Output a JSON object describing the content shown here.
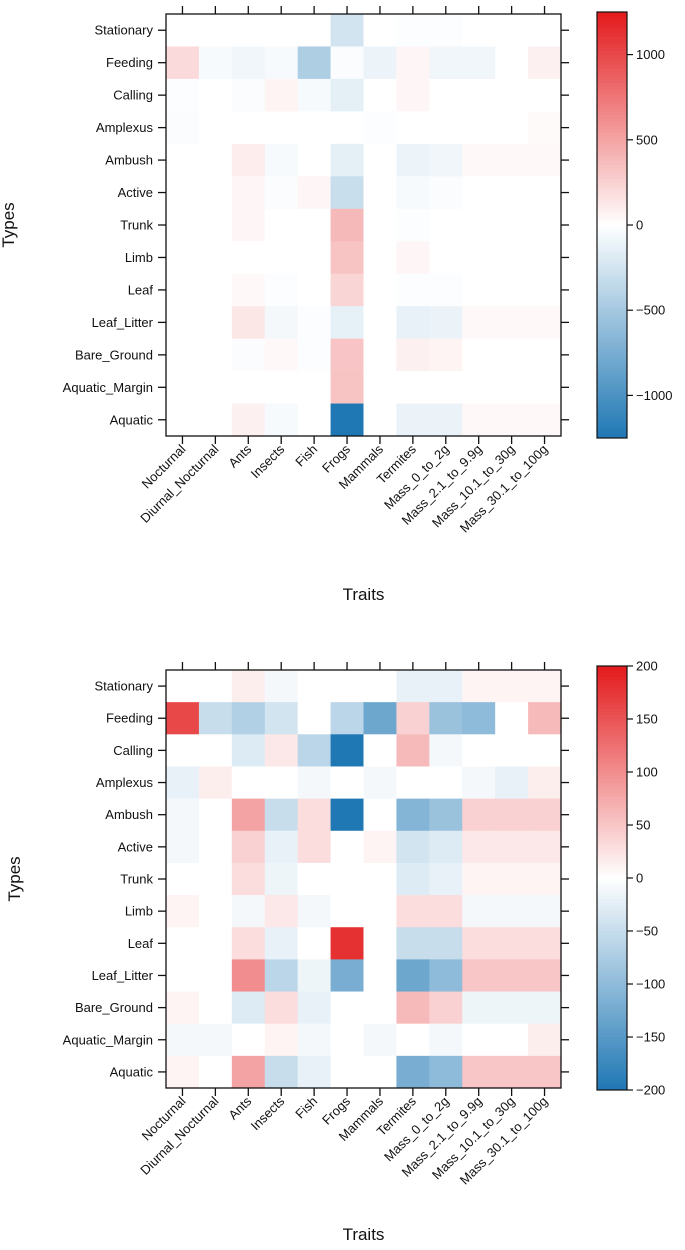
{
  "chart_data": [
    {
      "type": "heatmap",
      "xlabel": "Traits",
      "ylabel": "Types",
      "x_categories": [
        "Nocturnal",
        "Diurnal_Nocturnal",
        "Ants",
        "Insects",
        "Fish",
        "Frogs",
        "Mammals",
        "Termites",
        "Mass_0_to_2g",
        "Mass_2.1_to_9.9g",
        "Mass_10.1_to_30g",
        "Mass_30.1_to_100g"
      ],
      "y_categories": [
        "Stationary",
        "Feeding",
        "Calling",
        "Amplexus",
        "Ambush",
        "Active",
        "Trunk",
        "Limb",
        "Leaf",
        "Leaf_Litter",
        "Bare_Ground",
        "Aquatic_Margin",
        "Aquatic"
      ],
      "color_range": [
        -1250,
        1250
      ],
      "colorbar_ticks": [
        -1000,
        -500,
        0,
        500,
        1000
      ],
      "colorbar_tick_labels": [
        "−1000",
        "−500",
        "0",
        "500",
        "1000"
      ],
      "values": [
        [
          0,
          0,
          0,
          0,
          0,
          -250,
          0,
          -20,
          -20,
          0,
          0,
          0
        ],
        [
          200,
          -50,
          -80,
          -50,
          -450,
          -30,
          -100,
          50,
          -80,
          -80,
          0,
          80
        ],
        [
          -20,
          0,
          -30,
          60,
          -50,
          -150,
          0,
          50,
          0,
          0,
          0,
          0
        ],
        [
          -30,
          0,
          0,
          0,
          0,
          0,
          -20,
          0,
          0,
          0,
          0,
          30
        ],
        [
          0,
          0,
          100,
          -50,
          0,
          -150,
          0,
          -100,
          -80,
          40,
          40,
          40
        ],
        [
          0,
          0,
          50,
          -30,
          50,
          -300,
          0,
          -50,
          -30,
          0,
          0,
          0
        ],
        [
          0,
          0,
          50,
          0,
          0,
          380,
          0,
          -20,
          0,
          0,
          0,
          0
        ],
        [
          0,
          0,
          0,
          0,
          0,
          330,
          0,
          50,
          0,
          0,
          0,
          0
        ],
        [
          0,
          0,
          40,
          -20,
          0,
          230,
          0,
          -20,
          -20,
          0,
          0,
          0
        ],
        [
          0,
          0,
          130,
          -60,
          -20,
          -140,
          0,
          -130,
          -110,
          40,
          40,
          40
        ],
        [
          0,
          0,
          -30,
          40,
          -20,
          320,
          0,
          80,
          60,
          0,
          0,
          0
        ],
        [
          0,
          0,
          0,
          0,
          0,
          330,
          0,
          0,
          0,
          0,
          0,
          0
        ],
        [
          0,
          0,
          80,
          -50,
          0,
          -1250,
          0,
          -110,
          -110,
          40,
          40,
          40
        ]
      ]
    },
    {
      "type": "heatmap",
      "xlabel": "Traits",
      "ylabel": "Types",
      "x_categories": [
        "Nocturnal",
        "Diurnal_Nocturnal",
        "Ants",
        "Insects",
        "Fish",
        "Frogs",
        "Mammals",
        "Termites",
        "Mass_0_to_2g",
        "Mass_2.1_to_9.9g",
        "Mass_10.1_to_30g",
        "Mass_30.1_to_100g"
      ],
      "y_categories": [
        "Stationary",
        "Feeding",
        "Calling",
        "Amplexus",
        "Ambush",
        "Active",
        "Trunk",
        "Limb",
        "Leaf",
        "Leaf_Litter",
        "Bare_Ground",
        "Aquatic_Margin",
        "Aquatic"
      ],
      "color_range": [
        -200,
        200
      ],
      "colorbar_ticks": [
        -200,
        -150,
        -100,
        -50,
        0,
        50,
        100,
        150,
        200
      ],
      "colorbar_tick_labels": [
        "−200",
        "−150",
        "−100",
        "−50",
        "0",
        "50",
        "100",
        "150",
        "200"
      ],
      "values": [
        [
          0,
          0,
          15,
          -10,
          0,
          0,
          0,
          -20,
          -20,
          10,
          10,
          10
        ],
        [
          160,
          -50,
          -70,
          -40,
          0,
          -60,
          -130,
          40,
          -90,
          -100,
          0,
          60
        ],
        [
          0,
          0,
          -30,
          20,
          -60,
          -200,
          0,
          60,
          -10,
          0,
          0,
          0
        ],
        [
          -20,
          15,
          0,
          0,
          -10,
          0,
          -10,
          0,
          0,
          -10,
          -20,
          15
        ],
        [
          -10,
          0,
          80,
          -50,
          30,
          -200,
          0,
          -110,
          -90,
          40,
          40,
          40
        ],
        [
          -10,
          0,
          40,
          -20,
          30,
          0,
          10,
          -40,
          -30,
          20,
          20,
          20
        ],
        [
          0,
          0,
          30,
          -15,
          0,
          0,
          0,
          -30,
          -20,
          10,
          10,
          10
        ],
        [
          10,
          0,
          -10,
          20,
          -10,
          0,
          0,
          30,
          30,
          -10,
          -10,
          -10
        ],
        [
          0,
          0,
          30,
          -20,
          0,
          180,
          0,
          -50,
          -50,
          30,
          30,
          30
        ],
        [
          0,
          0,
          100,
          -60,
          -15,
          -120,
          0,
          -130,
          -100,
          50,
          50,
          50
        ],
        [
          10,
          0,
          -30,
          30,
          -20,
          0,
          0,
          60,
          40,
          -15,
          -15,
          -15
        ],
        [
          -10,
          -10,
          0,
          10,
          -10,
          0,
          -10,
          0,
          -10,
          0,
          0,
          15
        ],
        [
          10,
          0,
          80,
          -50,
          -20,
          0,
          0,
          -120,
          -100,
          50,
          50,
          50
        ]
      ]
    }
  ]
}
